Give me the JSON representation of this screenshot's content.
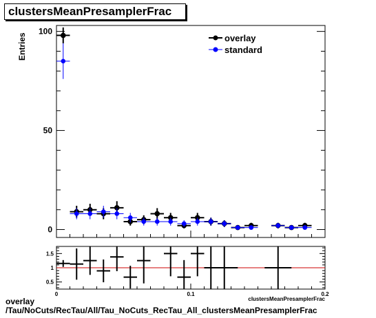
{
  "title": "clustersMeanPresamplerFrac",
  "footer": {
    "line1": "overlay",
    "line2": "/Tau/NoCuts/RecTau/All/Tau_NoCuts_RecTau_All_clustersMeanPresamplerFrac"
  },
  "colors": {
    "overlay": "#000000",
    "standard": "#0000ff",
    "ratio_reference": "#cc0000"
  },
  "chart_data": [
    {
      "type": "scatter",
      "title": "clustersMeanPresamplerFrac",
      "xlabel": "clustersMeanPresamplerFrac",
      "ylabel": "Entries",
      "xlim": [
        0,
        0.2
      ],
      "ylim": [
        -4,
        103
      ],
      "yticks": [
        0,
        50,
        100
      ],
      "legend_position": "top-right",
      "bin_width": 0.01,
      "series": [
        {
          "name": "overlay",
          "x": [
            0.005,
            0.015,
            0.025,
            0.035,
            0.045,
            0.055,
            0.065,
            0.075,
            0.085,
            0.095,
            0.105,
            0.115,
            0.125,
            0.135,
            0.145,
            0.165,
            0.175,
            0.185
          ],
          "y": [
            98,
            9,
            10,
            8,
            11,
            4,
            5,
            8,
            6,
            2,
            6,
            4,
            3,
            1,
            2,
            2,
            1,
            2
          ],
          "yerr": [
            4,
            3,
            3,
            2.8,
            3.3,
            2,
            2.2,
            2.8,
            2.4,
            1.4,
            2.4,
            2,
            1.7,
            1,
            1.4,
            1.4,
            1,
            1.4
          ]
        },
        {
          "name": "standard",
          "x": [
            0.005,
            0.015,
            0.025,
            0.035,
            0.045,
            0.055,
            0.065,
            0.075,
            0.085,
            0.095,
            0.105,
            0.115,
            0.125,
            0.135,
            0.145,
            0.165,
            0.175,
            0.185
          ],
          "y": [
            85,
            8,
            8,
            9,
            8,
            6,
            4,
            4,
            4,
            3,
            4,
            4,
            3,
            1,
            1,
            2,
            1,
            1
          ],
          "yerr": [
            9,
            2.8,
            2.8,
            3,
            2.8,
            2.4,
            2,
            2,
            2,
            1.7,
            2,
            2,
            1.7,
            1,
            1,
            1.4,
            1,
            1
          ]
        }
      ]
    },
    {
      "type": "scatter",
      "title": "",
      "xlabel": "",
      "ylabel": "",
      "xlim": [
        0,
        0.2
      ],
      "ylim": [
        0.25,
        1.75
      ],
      "yticks": [
        0.5,
        1,
        1.5
      ],
      "xticks": [
        0,
        0.1,
        0.2
      ],
      "reference_line": 1,
      "series": [
        {
          "name": "ratio",
          "x": [
            0.005,
            0.015,
            0.025,
            0.035,
            0.045,
            0.055,
            0.065,
            0.085,
            0.095,
            0.105,
            0.115,
            0.125,
            0.165
          ],
          "xerr": [
            0.005,
            0.005,
            0.005,
            0.005,
            0.005,
            0.005,
            0.005,
            0.005,
            0.005,
            0.005,
            0.005,
            0.01,
            0.01
          ],
          "y": [
            1.15,
            1.13,
            1.25,
            0.89,
            1.38,
            0.67,
            1.25,
            1.5,
            0.67,
            1.5,
            1.0,
            1.0,
            1.0
          ],
          "yerr": [
            0.12,
            0.55,
            0.5,
            0.4,
            0.5,
            0.4,
            0.8,
            0.8,
            0.6,
            0.8,
            1.1,
            1.5,
            1.5
          ]
        }
      ]
    }
  ]
}
